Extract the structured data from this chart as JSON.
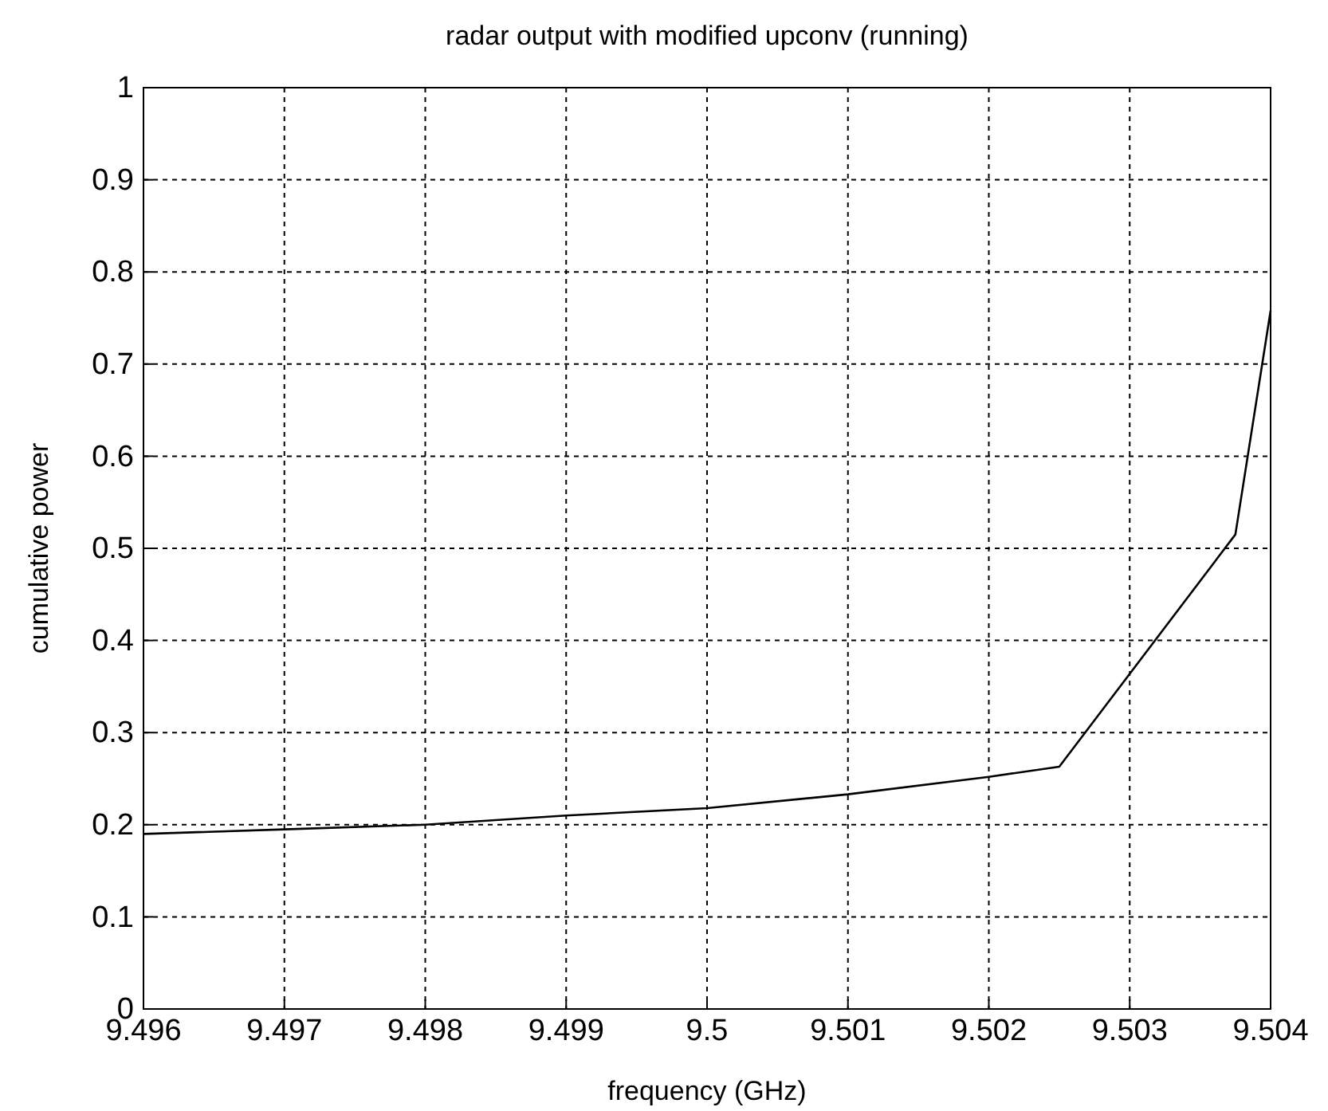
{
  "chart_data": {
    "type": "line",
    "title": "radar output with modified upconv (running)",
    "xlabel": "frequency (GHz)",
    "ylabel": "cumulative power",
    "x": [
      9.496,
      9.497,
      9.498,
      9.499,
      9.5,
      9.501,
      9.502,
      9.5025,
      9.50375,
      9.504
    ],
    "series": [
      {
        "color": "#000000",
        "values": [
          0.19,
          0.195,
          0.2,
          0.21,
          0.218,
          0.233,
          0.252,
          0.263,
          0.515,
          0.758
        ]
      }
    ],
    "xlim": [
      9.496,
      9.504
    ],
    "xticks": [
      9.496,
      9.497,
      9.498,
      9.499,
      9.5,
      9.501,
      9.502,
      9.503,
      9.504
    ],
    "ylim": [
      0,
      1
    ],
    "yticks": [
      0,
      0.1,
      0.2,
      0.3,
      0.4,
      0.5,
      0.6,
      0.7,
      0.8,
      0.9,
      1
    ],
    "grid": true,
    "line_style": "solid",
    "marker": "none"
  }
}
